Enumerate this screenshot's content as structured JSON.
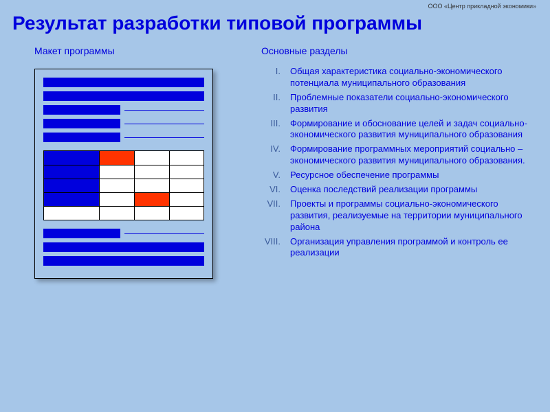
{
  "org": "ООО «Центр прикладной экономики»",
  "title": "Результат разработки типовой программы",
  "leftSubtitle": "Макет программы",
  "rightSubtitle": "Основные разделы",
  "colors": {
    "background": "#a6c6e8",
    "primary_blue": "#0000dd",
    "accent_red": "#ff3300",
    "table_border": "#000000",
    "table_bg": "#ffffff",
    "roman_color": "#3a5a9a"
  },
  "mockup": {
    "topBars": [
      "full",
      "full",
      "half-line",
      "half-line",
      "half-line"
    ],
    "table": {
      "cols": 4,
      "col_widths_pct": [
        35,
        22,
        22,
        21
      ],
      "rows": [
        [
          {
            "fill": "#0000dd"
          },
          {
            "fill": "#ff3300"
          },
          {
            "fill": "#ffffff"
          },
          {
            "fill": "#ffffff"
          }
        ],
        [
          {
            "fill": "#0000dd"
          },
          {
            "fill": "#ffffff"
          },
          {
            "fill": "#ffffff"
          },
          {
            "fill": "#ffffff"
          }
        ],
        [
          {
            "fill": "#0000dd"
          },
          {
            "fill": "#ffffff"
          },
          {
            "fill": "#ffffff"
          },
          {
            "fill": "#ffffff"
          }
        ],
        [
          {
            "fill": "#0000dd"
          },
          {
            "fill": "#ffffff"
          },
          {
            "fill": "#ff3300"
          },
          {
            "fill": "#ffffff"
          }
        ],
        [
          {
            "fill": "#ffffff"
          },
          {
            "fill": "#ffffff"
          },
          {
            "fill": "#ffffff"
          },
          {
            "fill": "#ffffff"
          }
        ]
      ]
    },
    "bottomBars": [
      "half-line",
      "full",
      "full"
    ]
  },
  "sections": [
    {
      "num": "I.",
      "text": "Общая характеристика социально-экономического потенциала муниципального образования"
    },
    {
      "num": "II.",
      "text": "Проблемные показатели социально-экономического развития"
    },
    {
      "num": "III.",
      "text": "Формирование и обоснование целей и задач социально-экономического развития муниципального образования"
    },
    {
      "num": "IV.",
      "text": "Формирование программных мероприятий социально – экономического развития муниципального образования."
    },
    {
      "num": "V.",
      "text": "Ресурсное обеспечение программы"
    },
    {
      "num": "VI.",
      "text": "Оценка последствий реализации программы"
    },
    {
      "num": "VII.",
      "text": "Проекты и программы социально-экономического развития, реализуемые на территории муниципального района"
    },
    {
      "num": "VIII.",
      "text": "Организация управления программой и контроль ее реализации"
    }
  ]
}
